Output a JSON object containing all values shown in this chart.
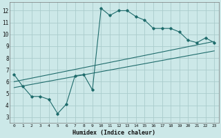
{
  "bg_color": "#cce8e8",
  "grid_color": "#aacccc",
  "line_color": "#1e6b6b",
  "xlabel": "Humidex (Indice chaleur)",
  "xlim": [
    -0.5,
    23.5
  ],
  "ylim": [
    2.5,
    12.7
  ],
  "xticks": [
    0,
    1,
    2,
    3,
    4,
    5,
    6,
    7,
    8,
    9,
    10,
    11,
    12,
    13,
    14,
    15,
    16,
    17,
    18,
    19,
    20,
    21,
    22,
    23
  ],
  "yticks": [
    3,
    4,
    5,
    6,
    7,
    8,
    9,
    10,
    11,
    12
  ],
  "curve1_x": [
    0,
    1,
    2,
    3,
    4,
    5,
    6,
    7,
    8,
    9,
    10,
    11,
    12,
    13,
    14,
    15,
    16,
    17,
    18,
    19,
    20,
    21,
    22,
    23
  ],
  "curve1_y": [
    6.6,
    5.6,
    4.75,
    4.75,
    4.5,
    3.3,
    4.1,
    6.5,
    6.6,
    5.3,
    12.2,
    11.6,
    12.0,
    12.0,
    11.5,
    11.2,
    10.5,
    10.5,
    10.5,
    10.2,
    9.5,
    9.3,
    9.7,
    9.3
  ],
  "line2_x": [
    0,
    23
  ],
  "line2_y": [
    6.0,
    9.4
  ],
  "line3_x": [
    0,
    23
  ],
  "line3_y": [
    5.5,
    8.6
  ]
}
